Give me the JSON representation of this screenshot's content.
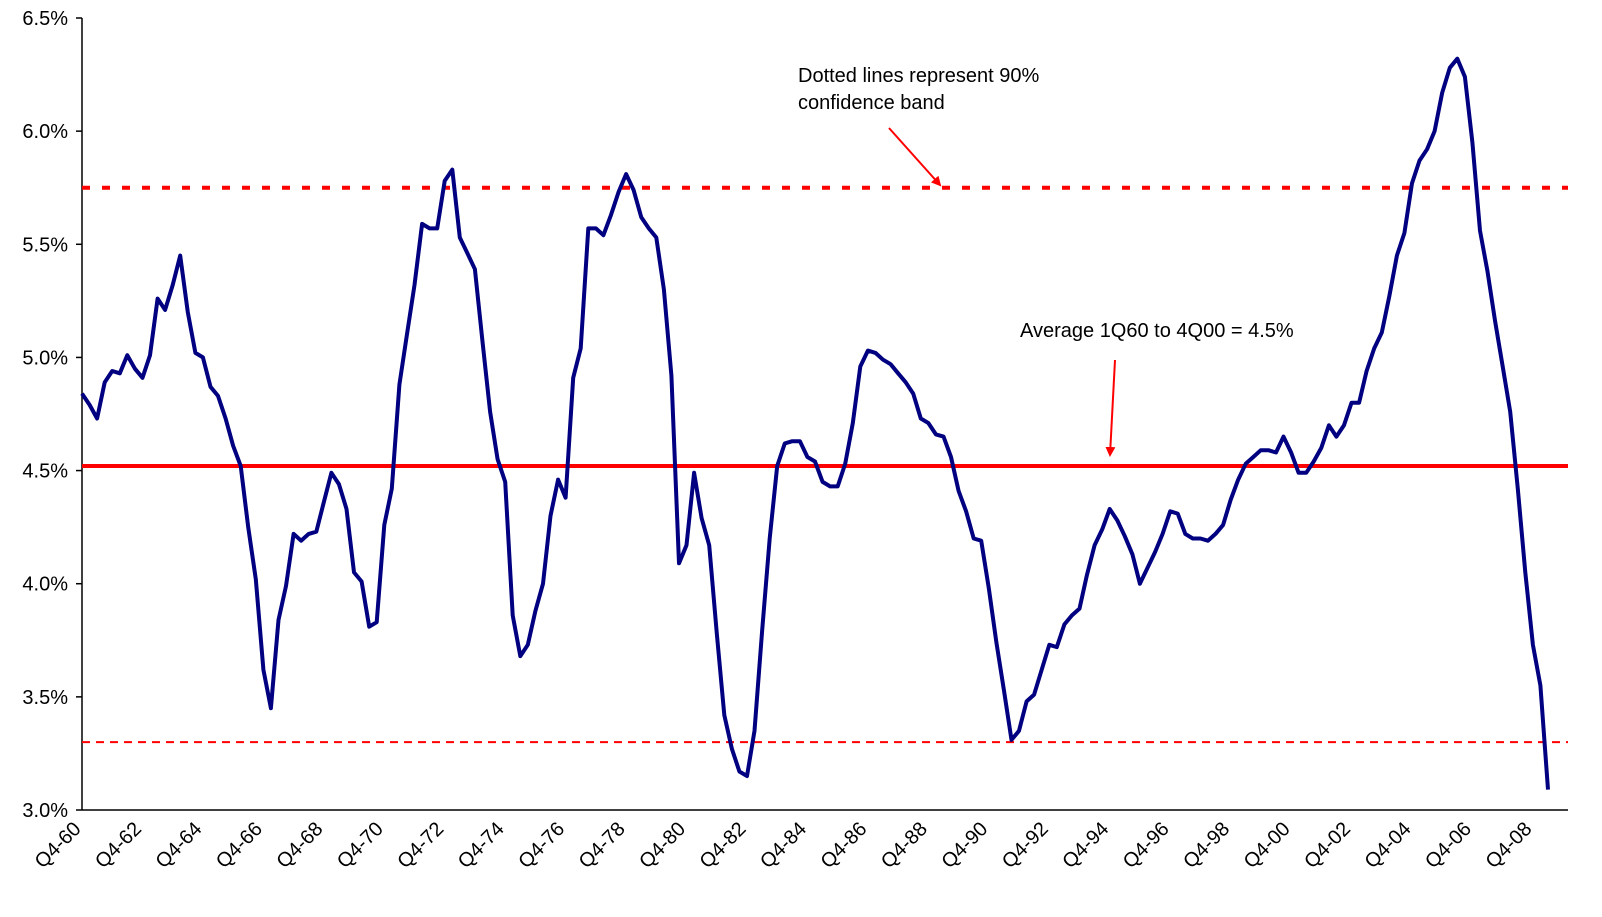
{
  "chart_data": {
    "type": "line",
    "categories": [
      "Q4-60",
      null,
      null,
      null,
      null,
      null,
      null,
      null,
      "Q4-62",
      null,
      null,
      null,
      null,
      null,
      null,
      null,
      "Q4-64",
      null,
      null,
      null,
      null,
      null,
      null,
      null,
      "Q4-66",
      null,
      null,
      null,
      null,
      null,
      null,
      null,
      "Q4-68",
      null,
      null,
      null,
      null,
      null,
      null,
      null,
      "Q4-70",
      null,
      null,
      null,
      null,
      null,
      null,
      null,
      "Q4-72",
      null,
      null,
      null,
      null,
      null,
      null,
      null,
      "Q4-74",
      null,
      null,
      null,
      null,
      null,
      null,
      null,
      "Q4-76",
      null,
      null,
      null,
      null,
      null,
      null,
      null,
      "Q4-78",
      null,
      null,
      null,
      null,
      null,
      null,
      null,
      "Q4-80",
      null,
      null,
      null,
      null,
      null,
      null,
      null,
      "Q4-82",
      null,
      null,
      null,
      null,
      null,
      null,
      null,
      "Q4-84",
      null,
      null,
      null,
      null,
      null,
      null,
      null,
      "Q4-86",
      null,
      null,
      null,
      null,
      null,
      null,
      null,
      "Q4-88",
      null,
      null,
      null,
      null,
      null,
      null,
      null,
      "Q4-90",
      null,
      null,
      null,
      null,
      null,
      null,
      null,
      "Q4-92",
      null,
      null,
      null,
      null,
      null,
      null,
      null,
      "Q4-94",
      null,
      null,
      null,
      null,
      null,
      null,
      null,
      "Q4-96",
      null,
      null,
      null,
      null,
      null,
      null,
      null,
      "Q4-98",
      null,
      null,
      null,
      null,
      null,
      null,
      null,
      "Q4-00",
      null,
      null,
      null,
      null,
      null,
      null,
      null,
      "Q4-02",
      null,
      null,
      null,
      null,
      null,
      null,
      null,
      "Q4-04",
      null,
      null,
      null,
      null,
      null,
      null,
      null,
      "Q4-06",
      null,
      null,
      null,
      null,
      null,
      null,
      null,
      "Q4-08",
      null,
      null
    ],
    "series": [
      {
        "color": "#000080",
        "values": [
          4.84,
          4.79,
          4.73,
          4.89,
          4.94,
          4.93,
          5.01,
          4.95,
          4.91,
          5.01,
          5.26,
          5.21,
          5.32,
          5.45,
          5.2,
          5.02,
          5.0,
          4.87,
          4.83,
          4.73,
          4.61,
          4.52,
          4.25,
          4.02,
          3.62,
          3.45,
          3.84,
          3.99,
          4.22,
          4.19,
          4.22,
          4.23,
          4.36,
          4.49,
          4.44,
          4.33,
          4.05,
          4.01,
          3.81,
          3.83,
          4.26,
          4.42,
          4.88,
          5.1,
          5.32,
          5.59,
          5.57,
          5.57,
          5.78,
          5.83,
          5.53,
          5.46,
          5.39,
          5.07,
          4.76,
          4.55,
          4.45,
          3.86,
          3.68,
          3.73,
          3.88,
          4.0,
          4.3,
          4.46,
          4.38,
          4.91,
          5.04,
          5.57,
          5.57,
          5.54,
          5.63,
          5.73,
          5.81,
          5.74,
          5.62,
          5.57,
          5.53,
          5.3,
          4.92,
          4.09,
          4.17,
          4.49,
          4.29,
          4.17,
          3.78,
          3.42,
          3.27,
          3.17,
          3.15,
          3.35,
          3.79,
          4.2,
          4.52,
          4.62,
          4.63,
          4.63,
          4.56,
          4.54,
          4.45,
          4.43,
          4.43,
          4.53,
          4.71,
          4.96,
          5.03,
          5.02,
          4.99,
          4.97,
          4.93,
          4.89,
          4.84,
          4.73,
          4.71,
          4.66,
          4.65,
          4.56,
          4.41,
          4.32,
          4.2,
          4.19,
          3.98,
          3.74,
          3.53,
          3.31,
          3.35,
          3.48,
          3.51,
          3.62,
          3.73,
          3.72,
          3.82,
          3.86,
          3.89,
          4.04,
          4.17,
          4.24,
          4.33,
          4.28,
          4.21,
          4.13,
          4.0,
          4.07,
          4.14,
          4.22,
          4.32,
          4.31,
          4.22,
          4.2,
          4.2,
          4.19,
          4.22,
          4.26,
          4.37,
          4.46,
          4.53,
          4.56,
          4.59,
          4.59,
          4.58,
          4.65,
          4.58,
          4.49,
          4.49,
          4.54,
          4.6,
          4.7,
          4.65,
          4.7,
          4.8,
          4.8,
          4.94,
          5.04,
          5.11,
          5.27,
          5.45,
          5.55,
          5.77,
          5.87,
          5.92,
          6.0,
          6.17,
          6.28,
          6.32,
          6.24,
          5.95,
          5.56,
          5.38,
          5.16,
          4.96,
          4.76,
          4.42,
          4.05,
          3.73,
          3.55,
          3.09
        ]
      }
    ],
    "ylim": [
      3.0,
      6.5
    ],
    "yticks": [
      {
        "value": 3.0,
        "label": "3.0%"
      },
      {
        "value": 3.5,
        "label": "3.5%"
      },
      {
        "value": 4.0,
        "label": "4.0%"
      },
      {
        "value": 4.5,
        "label": "4.5%"
      },
      {
        "value": 5.0,
        "label": "5.0%"
      },
      {
        "value": 5.5,
        "label": "5.5%"
      },
      {
        "value": 6.0,
        "label": "6.0%"
      },
      {
        "value": 6.5,
        "label": "6.5%"
      }
    ],
    "grid": false,
    "reference_lines": [
      {
        "value": 4.52,
        "color": "#ff0000",
        "style": "solid"
      },
      {
        "value": 5.75,
        "color": "#ff0000",
        "style": "dotted"
      },
      {
        "value": 3.3,
        "color": "#ff0000",
        "style": "dashed"
      }
    ],
    "annotations": [
      {
        "lines": [
          "Dotted lines represent 90%",
          "confidence band"
        ]
      },
      {
        "lines": [
          "Average 1Q60 to 4Q00 = 4.5%"
        ]
      }
    ]
  }
}
